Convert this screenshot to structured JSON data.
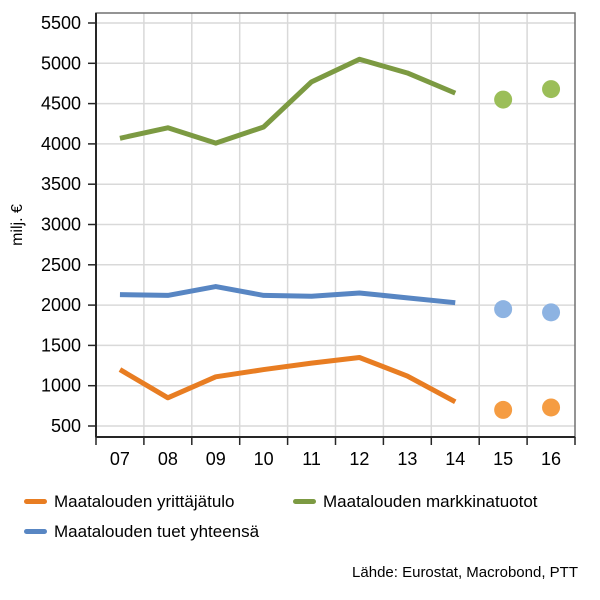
{
  "chart_data": {
    "type": "line",
    "title": "",
    "ylabel": "milj. €",
    "x_labels": [
      "07",
      "08",
      "09",
      "10",
      "11",
      "12",
      "13",
      "14",
      "15",
      "16"
    ],
    "y_ticks": [
      500,
      1000,
      1500,
      2000,
      2500,
      3000,
      3500,
      4000,
      4500,
      5000,
      5500
    ],
    "ylim": [
      500,
      5500
    ],
    "grid": true,
    "legend_position": "bottom-left",
    "series": [
      {
        "name": "Maatalouden yrittäjätulo",
        "line_color": "#e87d22",
        "dot_color": "#f59c42",
        "line_years": [
          "07",
          "08",
          "09",
          "10",
          "11",
          "12",
          "13",
          "14"
        ],
        "line_values": [
          1200,
          850,
          1110,
          1200,
          1280,
          1350,
          1120,
          800
        ],
        "dot_years": [
          "15",
          "16"
        ],
        "dot_values": [
          700,
          730
        ]
      },
      {
        "name": "Maatalouden tuet yhteensä",
        "line_color": "#5886c3",
        "dot_color": "#8db3e2",
        "line_years": [
          "07",
          "08",
          "09",
          "10",
          "11",
          "12",
          "13",
          "14"
        ],
        "line_values": [
          2130,
          2120,
          2230,
          2120,
          2110,
          2150,
          2090,
          2030
        ],
        "dot_years": [
          "15",
          "16"
        ],
        "dot_values": [
          1950,
          1910
        ]
      },
      {
        "name": "Maatalouden markkinatuotot",
        "line_color": "#7c9a42",
        "dot_color": "#9bbe58",
        "line_years": [
          "07",
          "08",
          "09",
          "10",
          "11",
          "12",
          "13",
          "14"
        ],
        "line_values": [
          4070,
          4200,
          4010,
          4210,
          4770,
          5050,
          4880,
          4630
        ],
        "dot_years": [
          "15",
          "16"
        ],
        "dot_values": [
          4550,
          4680
        ]
      }
    ],
    "source": "Lähde: Eurostat, Macrobond, PTT"
  },
  "style_colors": {
    "gridline": "#d9d9d9",
    "plot_border": "#707070",
    "axis": "#262626",
    "text": "#000000"
  }
}
